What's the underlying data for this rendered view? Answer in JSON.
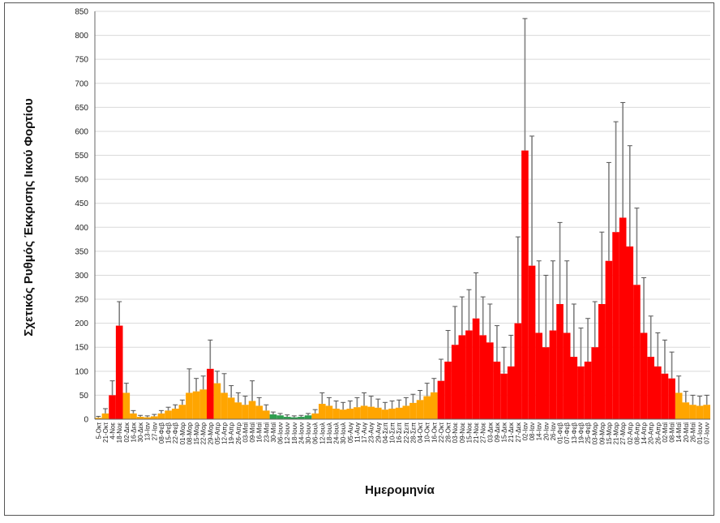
{
  "chart_data": {
    "type": "bar",
    "title": "",
    "xlabel": "Ημερομηνία",
    "ylabel": "Σχετικός Ρυθμός Έκκρισης Ιικού Φορτίου",
    "ylim": [
      0,
      850
    ],
    "yticks": [
      0,
      50,
      100,
      150,
      200,
      250,
      300,
      350,
      400,
      450,
      500,
      550,
      600,
      650,
      700,
      750,
      800,
      850
    ],
    "grid": true,
    "error_bars": true,
    "colors": {
      "red": "#ff0000",
      "orange": "#ffa500",
      "green": "#2e9e4f",
      "error": "#808080",
      "grid": "#d9d9d9"
    },
    "categories": [
      "5-Οκτ",
      "21-Οκτ",
      "4-Νοε",
      "18-Νοε",
      "02-Δεκ",
      "16-Δεκ",
      "30-Δεκ",
      "13-Ιαν",
      "27-Ιαν",
      "08-Φεβ",
      "15-Φεβ",
      "22-Φεβ",
      "01-Μαρ",
      "08-Μαρ",
      "15-Μαρ",
      "22-Μαρ",
      "29-Μαρ",
      "05-Απρ",
      "12-Απρ",
      "19-Απρ",
      "26-Απρ",
      "03-Μαϊ",
      "09-Μαϊ",
      "16-Μαϊ",
      "23-Μαϊ",
      "30-Μαϊ",
      "06-Ιουν",
      "12-Ιουν",
      "18-Ιουν",
      "24-Ιουν",
      "30-Ιουν",
      "06-Ιουλ",
      "12-Ιουλ",
      "18-Ιουλ",
      "24-Ιουλ",
      "30-Ιουλ",
      "05-Αυγ",
      "11-Αυγ",
      "17-Αυγ",
      "23-Αυγ",
      "29-Αυγ",
      "04-Σεπ",
      "10-Σεπ",
      "16-Σεπ",
      "22-Σεπ",
      "28-Σεπ",
      "04-Οκτ",
      "10-Οκτ",
      "16-Οκτ",
      "22-Οκτ",
      "28-Οκτ",
      "03-Νοε",
      "09-Νοε",
      "15-Νοε",
      "21-Νοε",
      "27-Νοε",
      "03-Δεκ",
      "09-Δεκ",
      "15-Δεκ",
      "21-Δεκ",
      "27-Δεκ",
      "02-Ιαν",
      "08-Ιαν",
      "14-Ιαν",
      "20-Ιαν",
      "26-Ιαν",
      "01-Φεβ",
      "07-Φεβ",
      "13-Φεβ",
      "19-Φεβ",
      "25-Φεβ",
      "03-Μαρ",
      "09-Μαρ",
      "15-Μαρ",
      "21-Μαρ",
      "27-Μαρ",
      "02-Απρ",
      "08-Απρ",
      "14-Απρ",
      "20-Απρ",
      "26-Απρ",
      "02-Μαϊ",
      "08-Μαϊ",
      "14-Μαϊ",
      "20-Μαϊ",
      "26-Μαϊ",
      "01-Ιουν",
      "07-Ιουν"
    ],
    "values": [
      3,
      12,
      50,
      195,
      55,
      12,
      5,
      4,
      6,
      12,
      18,
      22,
      30,
      55,
      58,
      62,
      105,
      75,
      55,
      45,
      35,
      30,
      38,
      28,
      18,
      10,
      8,
      5,
      4,
      5,
      8,
      12,
      32,
      28,
      22,
      20,
      22,
      25,
      28,
      26,
      24,
      20,
      22,
      24,
      28,
      34,
      40,
      48,
      56,
      80,
      120,
      155,
      175,
      185,
      210,
      175,
      160,
      120,
      95,
      110,
      200,
      560,
      320,
      180,
      150,
      185,
      240,
      180,
      130,
      110,
      120,
      150,
      240,
      330,
      390,
      420,
      360,
      280,
      180,
      130,
      110,
      95,
      85,
      55,
      35,
      30,
      28,
      30
    ],
    "upper": [
      6,
      22,
      80,
      245,
      75,
      18,
      8,
      7,
      10,
      18,
      25,
      30,
      40,
      105,
      85,
      90,
      165,
      100,
      95,
      70,
      55,
      48,
      80,
      45,
      30,
      15,
      12,
      9,
      7,
      8,
      12,
      20,
      55,
      45,
      38,
      35,
      38,
      45,
      55,
      48,
      42,
      35,
      38,
      40,
      45,
      52,
      60,
      75,
      85,
      125,
      185,
      235,
      255,
      270,
      305,
      255,
      240,
      195,
      150,
      175,
      380,
      835,
      590,
      330,
      300,
      330,
      410,
      330,
      240,
      190,
      210,
      245,
      390,
      535,
      620,
      660,
      570,
      440,
      295,
      215,
      180,
      165,
      140,
      90,
      58,
      50,
      48,
      50
    ],
    "colors_by_category": [
      "orange",
      "orange",
      "red",
      "red",
      "orange",
      "orange",
      "orange",
      "orange",
      "orange",
      "orange",
      "orange",
      "orange",
      "orange",
      "orange",
      "orange",
      "orange",
      "red",
      "orange",
      "orange",
      "orange",
      "orange",
      "orange",
      "orange",
      "orange",
      "orange",
      "green",
      "green",
      "green",
      "green",
      "green",
      "green",
      "orange",
      "orange",
      "orange",
      "orange",
      "orange",
      "orange",
      "orange",
      "orange",
      "orange",
      "orange",
      "orange",
      "orange",
      "orange",
      "orange",
      "orange",
      "orange",
      "orange",
      "orange",
      "red",
      "red",
      "red",
      "red",
      "red",
      "red",
      "red",
      "red",
      "red",
      "red",
      "red",
      "red",
      "red",
      "red",
      "red",
      "red",
      "red",
      "red",
      "red",
      "red",
      "red",
      "red",
      "red",
      "red",
      "red",
      "red",
      "red",
      "red",
      "red",
      "red",
      "red",
      "red",
      "red",
      "red",
      "orange",
      "orange",
      "orange",
      "orange",
      "orange"
    ]
  }
}
